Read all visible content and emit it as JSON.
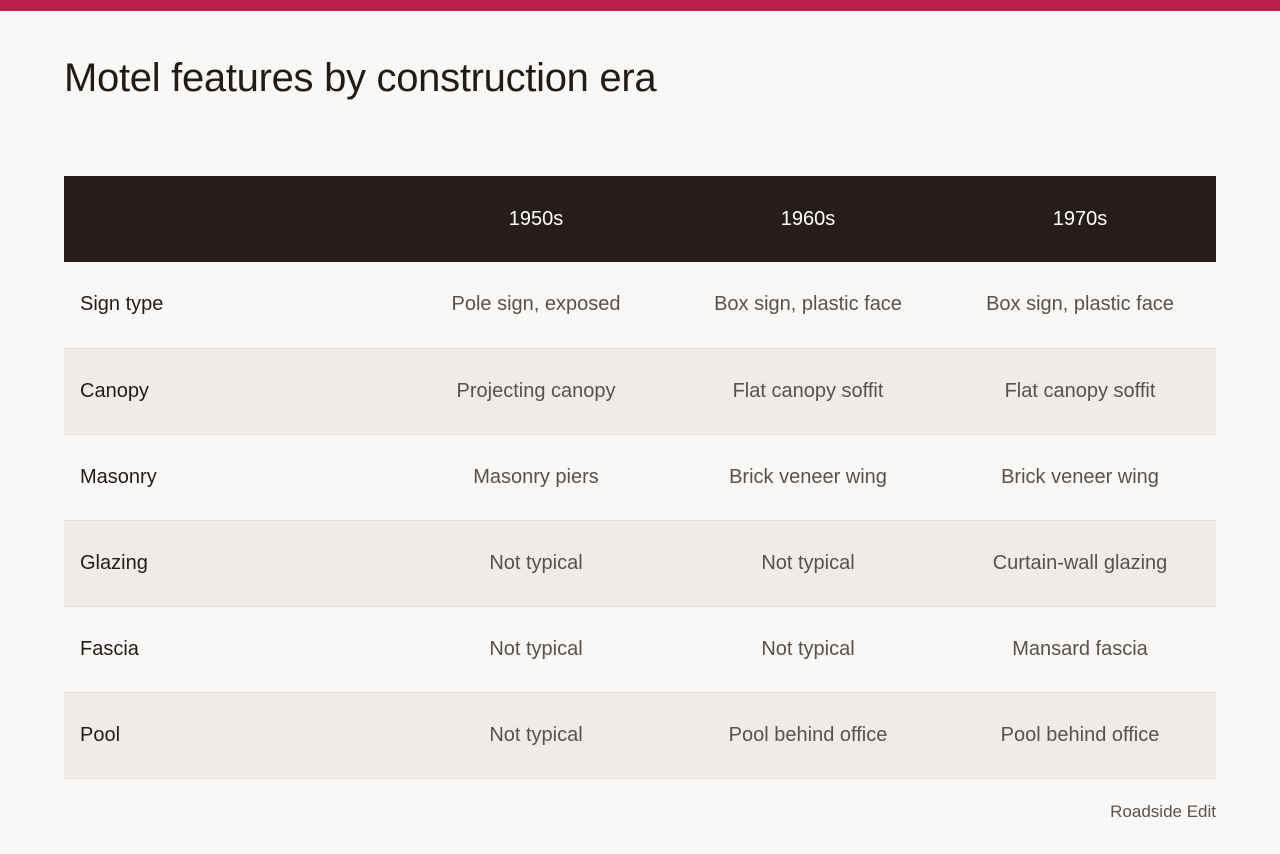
{
  "accent_color": "#be1e4a",
  "title": "Motel features by construction era",
  "table": {
    "header_colors": {
      "background": "#261d1a",
      "text": "#ffffff"
    },
    "columns": [
      "",
      "1950s",
      "1960s",
      "1970s"
    ],
    "rows": [
      {
        "label": "Sign type",
        "cells": [
          "Pole sign, exposed",
          "Box sign, plastic face",
          "Box sign, plastic face"
        ]
      },
      {
        "label": "Canopy",
        "cells": [
          "Projecting canopy",
          "Flat canopy soffit",
          "Flat canopy soffit"
        ]
      },
      {
        "label": "Masonry",
        "cells": [
          "Masonry piers",
          "Brick veneer wing",
          "Brick veneer wing"
        ]
      },
      {
        "label": "Glazing",
        "cells": [
          "Not typical",
          "Not typical",
          "Curtain-wall glazing"
        ]
      },
      {
        "label": "Fascia",
        "cells": [
          "Not typical",
          "Not typical",
          "Mansard fascia"
        ]
      },
      {
        "label": "Pool",
        "cells": [
          "Not typical",
          "Pool behind office",
          "Pool behind office"
        ]
      }
    ]
  },
  "source": "Roadside Edit"
}
